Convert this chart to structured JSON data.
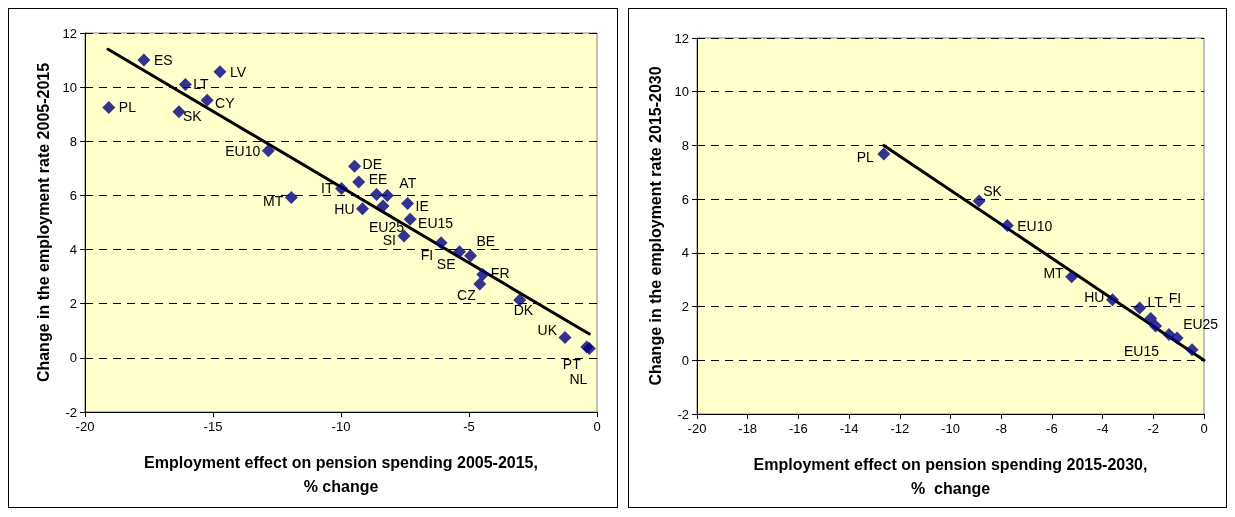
{
  "chart_data": [
    {
      "type": "scatter",
      "xlabel": "Employment effect on pension spending 2005-2015,\n% change",
      "ylabel": "Change in the employment rate 2005-2015",
      "xlim": [
        -20,
        0
      ],
      "xticks": [
        -20,
        -15,
        -10,
        -5,
        0
      ],
      "ylim": [
        -2,
        12
      ],
      "yticks": [
        -2,
        0,
        2,
        4,
        6,
        8,
        10,
        12
      ],
      "grid": "y",
      "marker": "diamond",
      "series": [
        {
          "color": "#000080",
          "x": [
            -19.07,
            -17.7,
            -16.08,
            -14.73,
            -15.23,
            -16.33,
            -12.84,
            -11.94,
            -9.98,
            -9.47,
            -9.31,
            -8.61,
            -8.19,
            -8.36,
            -9.16,
            -7.4,
            -7.3,
            -7.54,
            -6.09,
            -5.37,
            -4.94,
            -4.46,
            -4.58,
            -3.02,
            -1.25,
            -0.4,
            -0.3
          ],
          "values": [
            9.25,
            11.0,
            10.1,
            10.57,
            9.52,
            9.09,
            7.65,
            5.92,
            6.26,
            7.08,
            6.5,
            6.03,
            6.0,
            5.61,
            5.51,
            5.7,
            5.12,
            4.5,
            4.25,
            3.92,
            3.77,
            3.08,
            2.73,
            2.14,
            0.75,
            0.4,
            0.35
          ]
        },
        {
          "type": "line",
          "color": "#000000",
          "marker": "none",
          "x": [
            -19.1,
            -0.3
          ],
          "values": [
            11.4,
            0.88
          ]
        }
      ],
      "annotations": [
        {
          "text": "PL",
          "x": -19.07,
          "y": 9.25
        },
        {
          "text": "ES",
          "x": -17.7,
          "y": 11.0
        },
        {
          "text": "LT",
          "x": -16.08,
          "y": 10.1
        },
        {
          "text": "LV",
          "x": -14.73,
          "y": 10.57
        },
        {
          "text": "CY",
          "x": -15.23,
          "y": 9.52
        },
        {
          "text": "SK",
          "x": -16.33,
          "y": 9.09
        },
        {
          "text": "EU10",
          "x": -12.84,
          "y": 7.65
        },
        {
          "text": "MT",
          "x": -11.94,
          "y": 5.92
        },
        {
          "text": "IT",
          "x": -9.98,
          "y": 6.26
        },
        {
          "text": "DE",
          "x": -9.47,
          "y": 7.08
        },
        {
          "text": "EE",
          "x": -9.31,
          "y": 6.5
        },
        {
          "text": "AT",
          "x": -8.19,
          "y": 6.0
        },
        {
          "text": "EU25",
          "x": -8.36,
          "y": 5.61
        },
        {
          "text": "HU",
          "x": -9.16,
          "y": 5.51
        },
        {
          "text": "IE",
          "x": -7.4,
          "y": 5.7
        },
        {
          "text": "EU15",
          "x": -7.3,
          "y": 5.12
        },
        {
          "text": "SI",
          "x": -7.54,
          "y": 4.5
        },
        {
          "text": "FI",
          "x": -6.09,
          "y": 4.25
        },
        {
          "text": "SE",
          "x": -5.37,
          "y": 3.92
        },
        {
          "text": "BE",
          "x": -4.94,
          "y": 3.77
        },
        {
          "text": "FR",
          "x": -4.46,
          "y": 3.08
        },
        {
          "text": "CZ",
          "x": -4.58,
          "y": 2.73
        },
        {
          "text": "DK",
          "x": -3.02,
          "y": 2.14
        },
        {
          "text": "UK",
          "x": -1.25,
          "y": 0.75
        },
        {
          "text": "PT",
          "x": -0.4,
          "y": 0.4
        },
        {
          "text": "NL",
          "x": -0.3,
          "y": 0.35
        }
      ]
    },
    {
      "type": "scatter",
      "xlabel": "Employment effect on pension spending 2015-2030,\n%  change",
      "ylabel": "Change in the employment rate 2015-2030",
      "xlim": [
        -20,
        0
      ],
      "xticks": [
        -20,
        -18,
        -16,
        -14,
        -12,
        -10,
        -8,
        -6,
        -4,
        -2,
        0
      ],
      "ylim": [
        -2,
        12
      ],
      "yticks": [
        -2,
        0,
        2,
        4,
        6,
        8,
        10,
        12
      ],
      "grid": "y",
      "marker": "diamond",
      "series": [
        {
          "color": "#000080",
          "x": [
            -12.63,
            -8.87,
            -7.76,
            -5.22,
            -3.61,
            -2.54,
            -2.1,
            -1.91,
            -1.38,
            -1.06,
            -0.47
          ],
          "values": [
            7.68,
            5.93,
            5.02,
            3.11,
            2.25,
            1.95,
            1.56,
            1.28,
            0.96,
            0.83,
            0.39
          ]
        },
        {
          "type": "line",
          "color": "#000000",
          "marker": "none",
          "x": [
            -12.63,
            0
          ],
          "values": [
            8.0,
            0
          ]
        }
      ],
      "annotations": [
        {
          "text": "PL",
          "x": -12.63,
          "y": 7.68
        },
        {
          "text": "SK",
          "x": -8.87,
          "y": 5.93
        },
        {
          "text": "EU10",
          "x": -7.76,
          "y": 5.02
        },
        {
          "text": "MT",
          "x": -5.22,
          "y": 3.11
        },
        {
          "text": "HU",
          "x": -3.61,
          "y": 2.25
        },
        {
          "text": "LT",
          "x": -2.54,
          "y": 1.95
        },
        {
          "text": "FI",
          "x": -2.1,
          "y": 1.56
        },
        {
          "text": "EU25",
          "x": -1.06,
          "y": 0.83
        },
        {
          "text": "EU15",
          "x": -1.38,
          "y": 0.96
        }
      ]
    }
  ]
}
